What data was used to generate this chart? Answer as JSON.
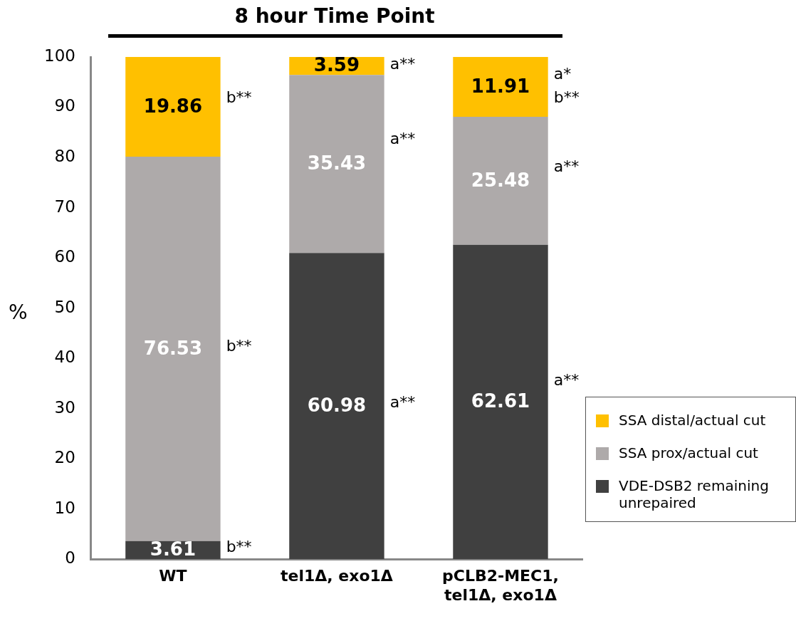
{
  "chart_data": {
    "type": "bar",
    "title": "8 hour Time Point",
    "ylabel": "%",
    "stacked": true,
    "data_labels": true,
    "legend": "bottom right",
    "grid": false,
    "categories": [
      "WT",
      "tel1Δ, exo1Δ",
      "pCLB2-MEC1, tel1Δ, exo1Δ"
    ],
    "series": [
      {
        "name": "VDE-DSB2 remaining unrepaired",
        "color": "#404040",
        "values": [
          3.61,
          60.98,
          62.61
        ]
      },
      {
        "name": "SSA prox/actual cut",
        "color": "#aeaaaa",
        "values": [
          76.53,
          35.43,
          25.48
        ]
      },
      {
        "name": "SSA distal/actual cut",
        "color": "#ffc000",
        "values": [
          19.86,
          3.59,
          11.91
        ]
      }
    ],
    "ylim": [
      0,
      100
    ],
    "yticks": [
      0,
      10,
      20,
      30,
      40,
      50,
      60,
      70,
      80,
      90,
      100
    ],
    "annotations": [
      "b**",
      "b**",
      "b**",
      "a**",
      "a**",
      "a**",
      "a*",
      "b**",
      "a**",
      "a**"
    ]
  }
}
